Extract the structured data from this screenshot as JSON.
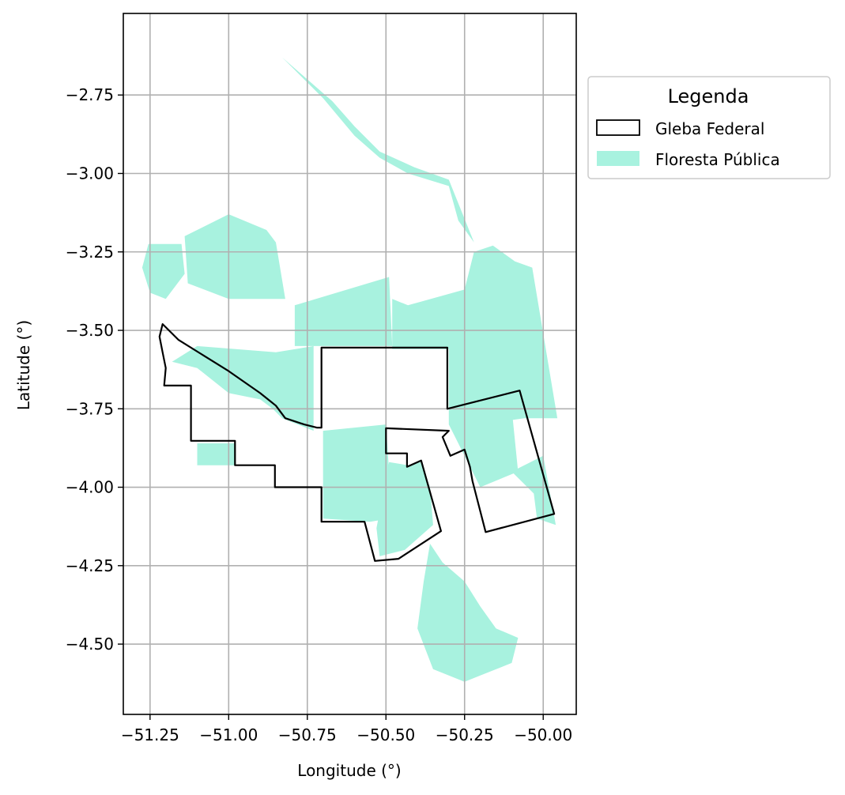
{
  "chart_data": {
    "type": "map",
    "xlabel": "Longitude (°)",
    "ylabel": "Latitude (°)",
    "xlim": [
      -51.335,
      -49.895
    ],
    "ylim": [
      -4.724,
      -2.49
    ],
    "x_ticks": [
      -51.25,
      -51.0,
      -50.75,
      -50.5,
      -50.25,
      -50.0
    ],
    "x_tick_labels": [
      "−51.25",
      "−51.00",
      "−50.75",
      "−50.50",
      "−50.25",
      "−50.00"
    ],
    "y_ticks": [
      -2.75,
      -3.0,
      -3.25,
      -3.5,
      -3.75,
      -4.0,
      -4.25,
      -4.5
    ],
    "y_tick_labels": [
      "−2.75",
      "−3.00",
      "−3.25",
      "−3.50",
      "−3.75",
      "−4.00",
      "−4.25",
      "−4.50"
    ],
    "grid": true,
    "legend": {
      "title": "Legenda",
      "placement": "outside upper right",
      "entries": [
        {
          "label": "Gleba Federal",
          "style": "outline",
          "color": "#000000"
        },
        {
          "label": "Floresta Pública",
          "style": "fill",
          "color": "#a8f2df"
        }
      ]
    },
    "gleba_federal_outline": [
      [
        -51.21,
        -3.48
      ],
      [
        -51.16,
        -3.53
      ],
      [
        -51.08,
        -3.58
      ],
      [
        -51.0,
        -3.63
      ],
      [
        -50.9,
        -3.7
      ],
      [
        -50.85,
        -3.74
      ],
      [
        -50.82,
        -3.78
      ],
      [
        -50.76,
        -3.8
      ],
      [
        -50.72,
        -3.81
      ],
      [
        -50.705,
        -3.81
      ],
      [
        -50.705,
        -3.555
      ],
      [
        -50.305,
        -3.555
      ],
      [
        -50.305,
        -3.75
      ],
      [
        -50.075,
        -3.692
      ],
      [
        -49.965,
        -4.085
      ],
      [
        -50.183,
        -4.143
      ],
      [
        -50.225,
        -3.98
      ],
      [
        -50.233,
        -3.935
      ],
      [
        -50.25,
        -3.88
      ],
      [
        -50.295,
        -3.9
      ],
      [
        -50.32,
        -3.84
      ],
      [
        -50.3,
        -3.82
      ],
      [
        -50.5,
        -3.812
      ],
      [
        -50.5,
        -3.892
      ],
      [
        -50.433,
        -3.892
      ],
      [
        -50.433,
        -3.935
      ],
      [
        -50.388,
        -3.915
      ],
      [
        -50.325,
        -4.14
      ],
      [
        -50.46,
        -4.228
      ],
      [
        -50.535,
        -4.235
      ],
      [
        -50.568,
        -4.11
      ],
      [
        -50.705,
        -4.11
      ],
      [
        -50.705,
        -4.0
      ],
      [
        -50.853,
        -4.0
      ],
      [
        -50.853,
        -3.93
      ],
      [
        -50.98,
        -3.93
      ],
      [
        -50.98,
        -3.852
      ],
      [
        -51.12,
        -3.852
      ],
      [
        -51.12,
        -3.676
      ],
      [
        -51.205,
        -3.676
      ],
      [
        -51.2,
        -3.62
      ],
      [
        -51.21,
        -3.57
      ],
      [
        -51.22,
        -3.52
      ],
      [
        -51.21,
        -3.48
      ]
    ],
    "floresta_publica_polygons": [
      [
        [
          -51.255,
          -3.225
        ],
        [
          -51.15,
          -3.225
        ],
        [
          -51.14,
          -3.32
        ],
        [
          -51.2,
          -3.4
        ],
        [
          -51.25,
          -3.38
        ],
        [
          -51.275,
          -3.3
        ]
      ],
      [
        [
          -51.14,
          -3.2
        ],
        [
          -51.0,
          -3.13
        ],
        [
          -50.88,
          -3.18
        ],
        [
          -50.85,
          -3.22
        ],
        [
          -50.82,
          -3.4
        ],
        [
          -51.0,
          -3.4
        ],
        [
          -51.13,
          -3.35
        ]
      ],
      [
        [
          -50.79,
          -3.42
        ],
        [
          -50.49,
          -3.33
        ],
        [
          -50.48,
          -3.55
        ],
        [
          -50.79,
          -3.55
        ]
      ],
      [
        [
          -50.48,
          -3.4
        ],
        [
          -50.43,
          -3.42
        ],
        [
          -50.25,
          -3.37
        ],
        [
          -50.22,
          -3.25
        ],
        [
          -50.16,
          -3.23
        ],
        [
          -50.09,
          -3.28
        ],
        [
          -50.035,
          -3.3
        ],
        [
          -49.955,
          -3.78
        ],
        [
          -50.06,
          -3.78
        ],
        [
          -50.2,
          -3.8
        ],
        [
          -50.3,
          -3.74
        ],
        [
          -50.3,
          -3.56
        ],
        [
          -50.4,
          -3.56
        ],
        [
          -50.48,
          -3.56
        ]
      ],
      [
        [
          -50.83,
          -2.63
        ],
        [
          -50.8,
          -2.66
        ],
        [
          -50.7,
          -2.76
        ],
        [
          -50.6,
          -2.88
        ],
        [
          -50.52,
          -2.95
        ],
        [
          -50.43,
          -3.0
        ],
        [
          -50.3,
          -3.04
        ],
        [
          -50.27,
          -3.15
        ],
        [
          -50.22,
          -3.22
        ],
        [
          -50.3,
          -3.02
        ],
        [
          -50.41,
          -2.98
        ],
        [
          -50.52,
          -2.93
        ],
        [
          -50.6,
          -2.85
        ],
        [
          -50.67,
          -2.77
        ]
      ],
      [
        [
          -51.18,
          -3.6
        ],
        [
          -51.1,
          -3.62
        ],
        [
          -51.0,
          -3.7
        ],
        [
          -50.9,
          -3.72
        ],
        [
          -50.86,
          -3.75
        ],
        [
          -50.83,
          -3.78
        ],
        [
          -50.78,
          -3.8
        ],
        [
          -50.73,
          -3.82
        ],
        [
          -50.73,
          -3.55
        ],
        [
          -50.85,
          -3.57
        ],
        [
          -51.1,
          -3.55
        ]
      ],
      [
        [
          -51.1,
          -3.86
        ],
        [
          -50.98,
          -3.86
        ],
        [
          -50.98,
          -3.93
        ],
        [
          -51.1,
          -3.93
        ]
      ],
      [
        [
          -50.7,
          -3.82
        ],
        [
          -50.5,
          -3.8
        ],
        [
          -50.49,
          -3.95
        ],
        [
          -50.49,
          -4.1
        ],
        [
          -50.55,
          -4.11
        ],
        [
          -50.7,
          -4.1
        ],
        [
          -50.7,
          -4.0
        ]
      ],
      [
        [
          -50.49,
          -3.92
        ],
        [
          -50.43,
          -3.93
        ],
        [
          -50.39,
          -3.92
        ],
        [
          -50.36,
          -4.0
        ],
        [
          -50.35,
          -4.12
        ],
        [
          -50.44,
          -4.2
        ],
        [
          -50.52,
          -4.22
        ],
        [
          -50.53,
          -4.13
        ]
      ],
      [
        [
          -50.3,
          -3.73
        ],
        [
          -50.15,
          -3.72
        ],
        [
          -50.1,
          -3.75
        ],
        [
          -50.08,
          -3.95
        ],
        [
          -50.2,
          -4.0
        ],
        [
          -50.25,
          -3.9
        ],
        [
          -50.3,
          -3.8
        ]
      ],
      [
        [
          -50.1,
          -3.95
        ],
        [
          -50.03,
          -4.02
        ],
        [
          -50.02,
          -4.1
        ],
        [
          -49.96,
          -4.12
        ],
        [
          -50.0,
          -3.9
        ]
      ],
      [
        [
          -50.36,
          -4.18
        ],
        [
          -50.32,
          -4.24
        ],
        [
          -50.25,
          -4.3
        ],
        [
          -50.2,
          -4.38
        ],
        [
          -50.15,
          -4.45
        ],
        [
          -50.08,
          -4.48
        ],
        [
          -50.1,
          -4.56
        ],
        [
          -50.2,
          -4.6
        ],
        [
          -50.25,
          -4.62
        ],
        [
          -50.35,
          -4.58
        ],
        [
          -50.4,
          -4.45
        ],
        [
          -50.38,
          -4.3
        ]
      ]
    ]
  }
}
